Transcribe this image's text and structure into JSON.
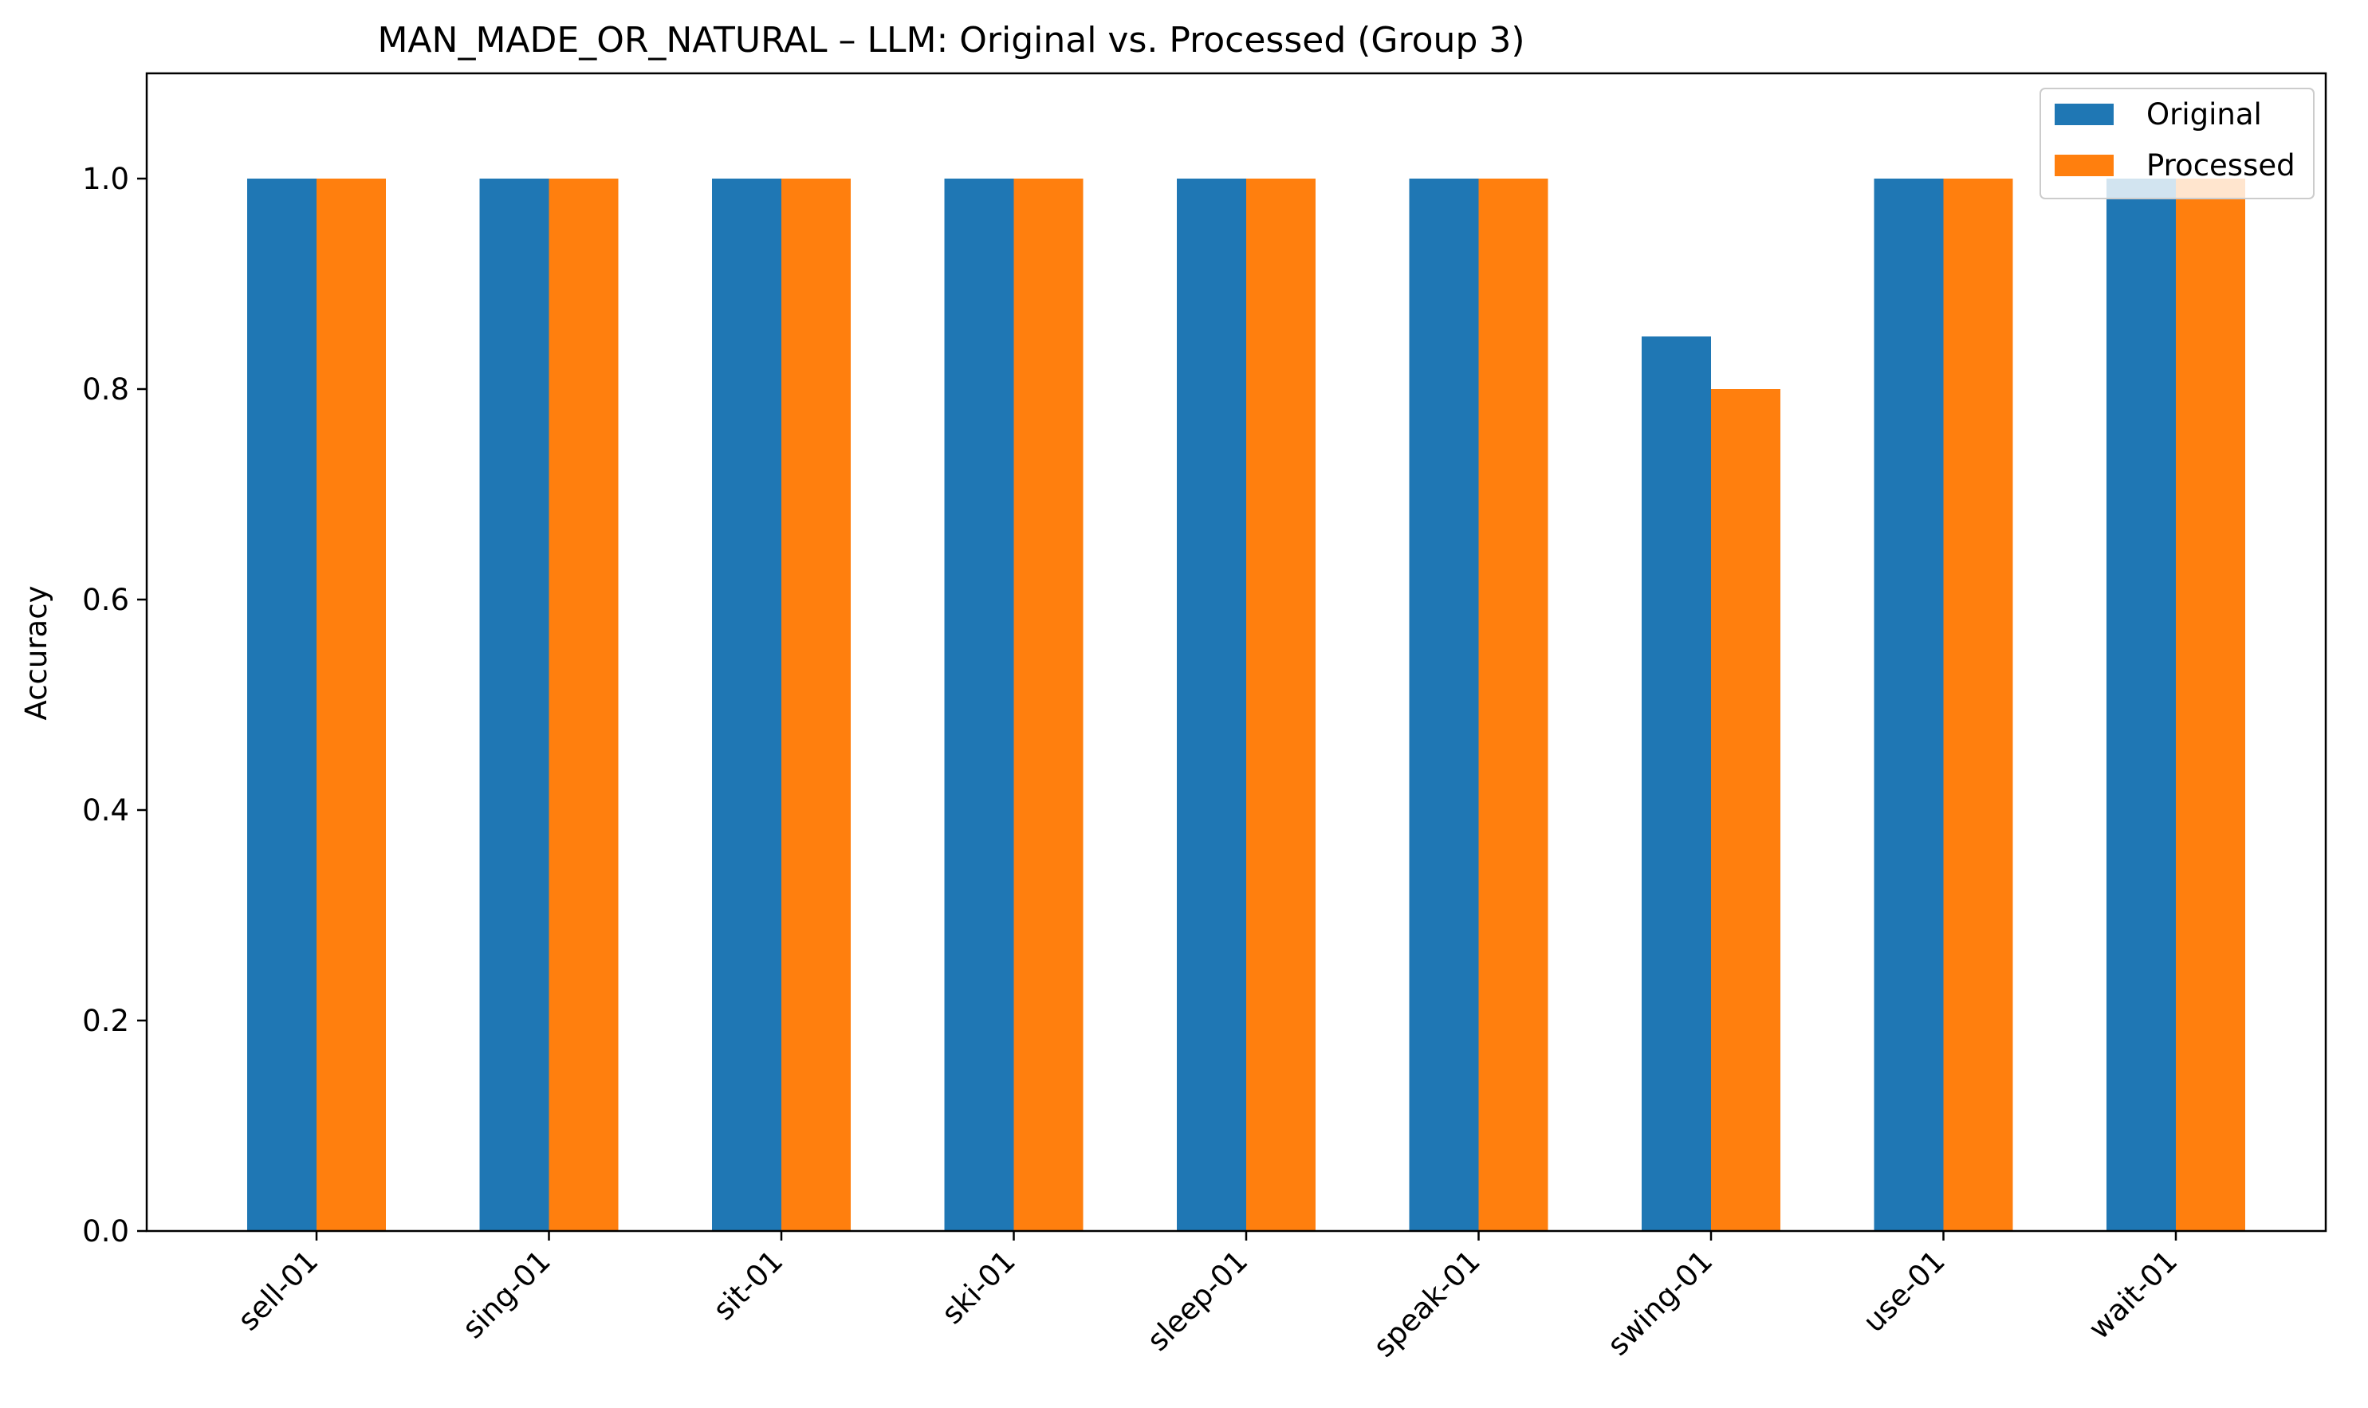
{
  "chart_data": {
    "type": "bar",
    "title": "MAN_MADE_OR_NATURAL – LLM: Original vs. Processed (Group 3)",
    "xlabel": "",
    "ylabel": "Accuracy",
    "ylim": [
      0,
      1.1
    ],
    "yticks": [
      "0.0",
      "0.2",
      "0.4",
      "0.6",
      "0.8",
      "1.0"
    ],
    "categories": [
      "sell-01",
      "sing-01",
      "sit-01",
      "ski-01",
      "sleep-01",
      "speak-01",
      "swing-01",
      "use-01",
      "wait-01"
    ],
    "series": [
      {
        "name": "Original",
        "color": "#1f77b4",
        "values": [
          1.0,
          1.0,
          1.0,
          1.0,
          1.0,
          1.0,
          0.85,
          1.0,
          1.0
        ]
      },
      {
        "name": "Processed",
        "color": "#ff7f0e",
        "values": [
          1.0,
          1.0,
          1.0,
          1.0,
          1.0,
          1.0,
          0.8,
          1.0,
          1.0
        ]
      }
    ],
    "grid": false,
    "legend_position": "top-right"
  }
}
